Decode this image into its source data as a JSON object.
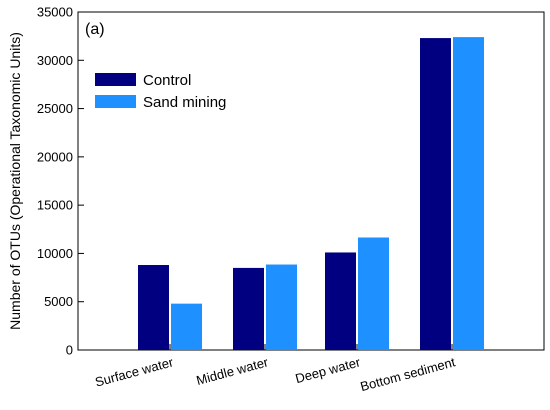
{
  "chart_data": {
    "type": "bar",
    "panel_label": "(a)",
    "ylabel": "Number of OTUs (Operational Taxonomic Units)",
    "xlabel": "",
    "ylim": [
      0,
      35000
    ],
    "yticks": [
      "0",
      "5000",
      "10000",
      "15000",
      "20000",
      "25000",
      "30000",
      "35000"
    ],
    "categories": [
      "Surface water",
      "Middle water",
      "Deep water",
      "Bottom sediment"
    ],
    "series": [
      {
        "name": "Control",
        "color": "#000080",
        "values": [
          8800,
          8500,
          10100,
          32300
        ]
      },
      {
        "name": "Sand mining",
        "color": "#1E90FF",
        "values": [
          4800,
          8850,
          11650,
          32400
        ]
      }
    ],
    "legend_position": "top-left",
    "grid": false
  }
}
